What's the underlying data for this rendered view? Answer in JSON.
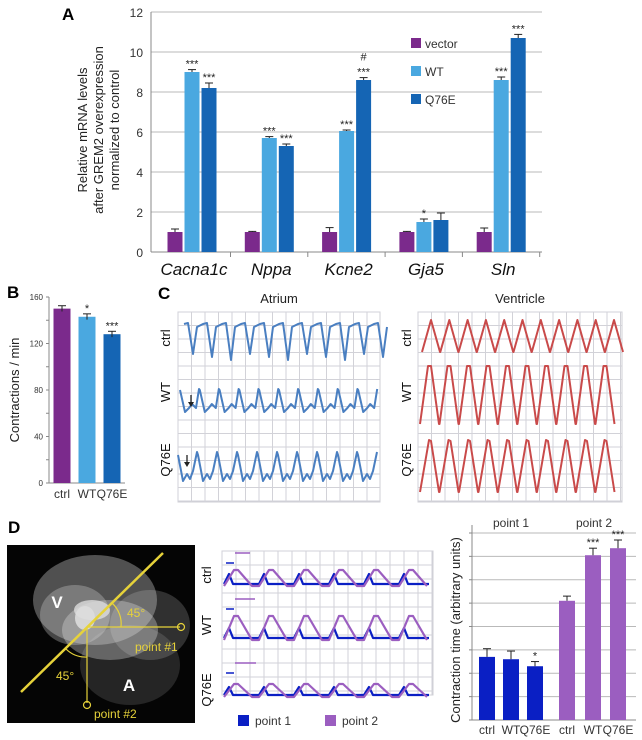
{
  "panels": {
    "a": "A",
    "b": "B",
    "c": "C",
    "d": "D"
  },
  "colors": {
    "vector": "#7b2a8c",
    "wt": "#4aa8e0",
    "q76e": "#1565b4",
    "atrium_trace": "#4a7fc1",
    "ventricle_trace": "#c94a4a",
    "point1": "#0a1fc4",
    "point2": "#9b5ec0",
    "image_lines": "#e6d23a"
  },
  "chart_data": [
    {
      "id": "A",
      "type": "bar",
      "title": "",
      "ylabel": [
        "Relative mRNA levels",
        "after GREM2 overexpression",
        "normalized to control"
      ],
      "xlabel": "",
      "ylim": [
        0,
        12
      ],
      "yticks": [
        "0",
        "2",
        "4",
        "6",
        "8",
        "10",
        "12"
      ],
      "grid": true,
      "legend_position": "top-right",
      "categories": [
        "Cacna1c",
        "Nppa",
        "Kcne2",
        "Gja5",
        "Sln"
      ],
      "series": [
        {
          "name": "vector",
          "values": [
            1.0,
            1.0,
            1.0,
            1.0,
            1.0
          ],
          "errors": [
            0.15,
            0.03,
            0.22,
            0.03,
            0.2
          ],
          "annotations": [
            "",
            "",
            "",
            "",
            ""
          ]
        },
        {
          "name": "WT",
          "values": [
            9.0,
            5.7,
            6.05,
            1.5,
            8.6
          ],
          "errors": [
            0.12,
            0.07,
            0.05,
            0.15,
            0.15
          ],
          "annotations": [
            "***",
            "***",
            "***",
            "*",
            "***"
          ]
        },
        {
          "name": "Q76E",
          "values": [
            8.2,
            5.3,
            8.6,
            1.6,
            10.7
          ],
          "errors": [
            0.25,
            0.1,
            0.12,
            0.35,
            0.18
          ],
          "annotations": [
            "***",
            "***",
            "***",
            "",
            "***"
          ]
        }
      ],
      "extra_annotations": [
        {
          "category": "Kcne2",
          "series": "Q76E",
          "text": "#"
        }
      ]
    },
    {
      "id": "B",
      "type": "bar",
      "title": "",
      "ylabel": "Contractions / min",
      "ylim": [
        0,
        160
      ],
      "yticks": [
        "0",
        "40",
        "80",
        "120",
        "160"
      ],
      "grid": false,
      "categories": [
        "ctrl",
        "WT",
        "Q76E"
      ],
      "values": [
        150,
        143,
        128
      ],
      "errors": [
        2.5,
        2.5,
        2.5
      ],
      "annotations": [
        "",
        "*",
        "***"
      ]
    },
    {
      "id": "D",
      "type": "bar",
      "title": "",
      "ylabel": "Contraction time (arbitrary units)",
      "ylim": [
        0,
        8
      ],
      "grid": true,
      "groups": [
        "point 1",
        "point 2"
      ],
      "categories": [
        "ctrl",
        "WT",
        "Q76E",
        "ctrl",
        "WT",
        "Q76E"
      ],
      "values": [
        2.7,
        2.6,
        2.3,
        5.1,
        7.05,
        7.35
      ],
      "errors": [
        0.35,
        0.35,
        0.2,
        0.2,
        0.3,
        0.35
      ],
      "annotations": [
        "",
        "",
        "*",
        "",
        "***",
        "***"
      ]
    }
  ],
  "panel_c": {
    "titles": [
      "Atrium",
      "Ventricle"
    ],
    "rows": [
      "ctrl",
      "WT",
      "Q76E"
    ]
  },
  "panel_d": {
    "image_labels": {
      "v": "V",
      "a": "A",
      "angle1": "45°",
      "angle2": "45°",
      "point1": "point #1",
      "point2": "point #2"
    },
    "trace_rows": [
      "ctrl",
      "WT",
      "Q76E"
    ],
    "legend": [
      "point 1",
      "point 2"
    ]
  }
}
